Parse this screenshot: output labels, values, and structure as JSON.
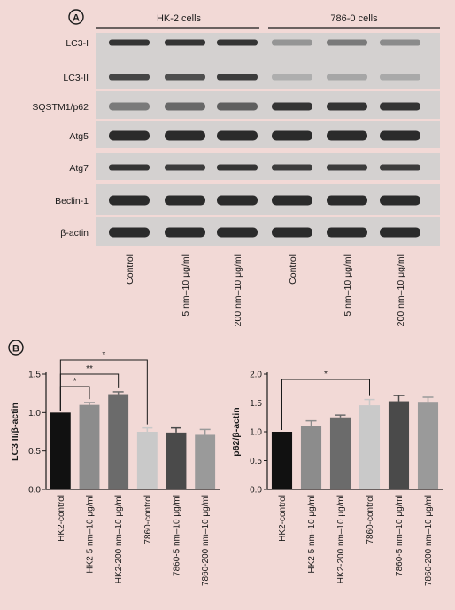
{
  "panelA": {
    "letter": "A",
    "groups": [
      "HK-2 cells",
      "786-0 cells"
    ],
    "bands": [
      {
        "name": "LC3-I",
        "intensity": [
          0.85,
          0.85,
          0.85,
          0.3,
          0.45,
          0.35
        ]
      },
      {
        "name": "LC3-II",
        "intensity": [
          0.75,
          0.7,
          0.8,
          0.15,
          0.2,
          0.18
        ]
      },
      {
        "name": "SQSTM1/p62",
        "intensity": [
          0.45,
          0.55,
          0.6,
          0.85,
          0.85,
          0.85
        ]
      },
      {
        "name": "Atg5",
        "intensity": [
          0.9,
          0.9,
          0.9,
          0.9,
          0.9,
          0.9
        ]
      },
      {
        "name": "Atg7",
        "intensity": [
          0.85,
          0.8,
          0.85,
          0.8,
          0.8,
          0.8
        ]
      },
      {
        "name": "Beclin-1",
        "intensity": [
          0.9,
          0.9,
          0.9,
          0.9,
          0.9,
          0.9
        ]
      },
      {
        "name": "β-actin",
        "intensity": [
          0.9,
          0.9,
          0.9,
          0.9,
          0.9,
          0.9
        ]
      }
    ],
    "lanes": [
      "Control",
      "5 nm–10 μg/ml",
      "200 nm–10 μg/ml",
      "Control",
      "5 nm–10 μg/ml",
      "200 nm–10 μg/ml"
    ]
  },
  "panelB": {
    "letter": "B",
    "colors": [
      "#111111",
      "#8c8c8c",
      "#6b6b6b",
      "#c9c9c9",
      "#4a4a4a",
      "#9a9a9a"
    ]
  },
  "chart_data": [
    {
      "type": "bar",
      "ylabel": "LC3 II/β-actin",
      "categories": [
        "HK2-control",
        "HK2 5 nm–10 μg/ml",
        "HK2-200 nm–10 μg/ml",
        "7860-control",
        "7860-5 nm–10 μg/ml",
        "7860-200 nm–10 μg/ml"
      ],
      "values": [
        1.0,
        1.1,
        1.24,
        0.75,
        0.74,
        0.71
      ],
      "errors": [
        0.0,
        0.03,
        0.03,
        0.05,
        0.06,
        0.07
      ],
      "ylim": [
        0,
        1.5
      ],
      "yticks": [
        "0.0",
        "0.5",
        "1.0",
        "1.5"
      ],
      "significance": [
        {
          "from": 0,
          "to": 1,
          "label": "*"
        },
        {
          "from": 0,
          "to": 2,
          "label": "**"
        },
        {
          "from": 0,
          "to": 3,
          "label": "*"
        }
      ]
    },
    {
      "type": "bar",
      "ylabel": "p62/β-actin",
      "categories": [
        "HK2-control",
        "HK2 5 nm–10 μg/ml",
        "HK2-200 nm–10 μg/ml",
        "7860-control",
        "7860-5 nm–10 μg/ml",
        "7860-200 nm–10 μg/ml"
      ],
      "values": [
        1.0,
        1.1,
        1.25,
        1.46,
        1.53,
        1.52
      ],
      "errors": [
        0.0,
        0.09,
        0.04,
        0.1,
        0.1,
        0.08
      ],
      "ylim": [
        0,
        2.0
      ],
      "yticks": [
        "0.0",
        "0.5",
        "1.0",
        "1.5",
        "2.0"
      ],
      "significance": [
        {
          "from": 0,
          "to": 3,
          "label": "*"
        }
      ]
    }
  ]
}
